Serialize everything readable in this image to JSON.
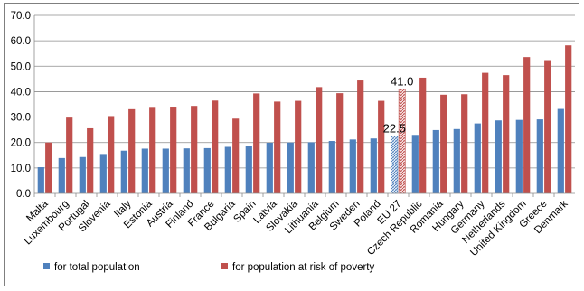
{
  "chart_data": {
    "type": "bar",
    "title": "",
    "xlabel": "",
    "ylabel": "",
    "ylim": [
      0,
      70
    ],
    "yticks": [
      "0.0",
      "10.0",
      "20.0",
      "30.0",
      "40.0",
      "50.0",
      "60.0",
      "70.0"
    ],
    "grid": "horizontal",
    "legend_position": "bottom-left",
    "categories": [
      "Malta",
      "Luxembourg",
      "Portugal",
      "Slovenia",
      "Italy",
      "Estonia",
      "Austria",
      "Finland",
      "France",
      "Bulgaria",
      "Spain",
      "Latvia",
      "Slovakia",
      "Lithuania",
      "Belgium",
      "Sweden",
      "Poland",
      "EU 27",
      "Czech Republic",
      "Romania",
      "Hungary",
      "Germany",
      "Netherlands",
      "United Kingdom",
      "Greece",
      "Denmark"
    ],
    "series": [
      {
        "name": "for total population",
        "color": "#4f81bd",
        "values": [
          10.3,
          13.9,
          14.3,
          15.5,
          16.8,
          17.6,
          17.6,
          17.7,
          17.8,
          18.3,
          18.8,
          19.9,
          20.0,
          20.1,
          20.6,
          21.2,
          21.6,
          22.5,
          23.0,
          24.9,
          25.3,
          27.5,
          28.7,
          28.9,
          29.1,
          33.2
        ]
      },
      {
        "name": "for population at risk of poverty",
        "color": "#c0504d",
        "values": [
          20.0,
          29.8,
          25.6,
          30.4,
          33.1,
          34.0,
          34.1,
          34.4,
          36.5,
          29.4,
          39.3,
          36.1,
          36.4,
          41.8,
          39.4,
          44.4,
          36.4,
          41.0,
          45.5,
          38.8,
          39.0,
          47.4,
          46.5,
          53.6,
          52.4,
          58.2
        ]
      }
    ],
    "highlight_category": "EU 27",
    "data_labels": [
      {
        "category": "EU 27",
        "series": 0,
        "text": "22.5"
      },
      {
        "category": "EU 27",
        "series": 1,
        "text": "41.0"
      }
    ]
  }
}
